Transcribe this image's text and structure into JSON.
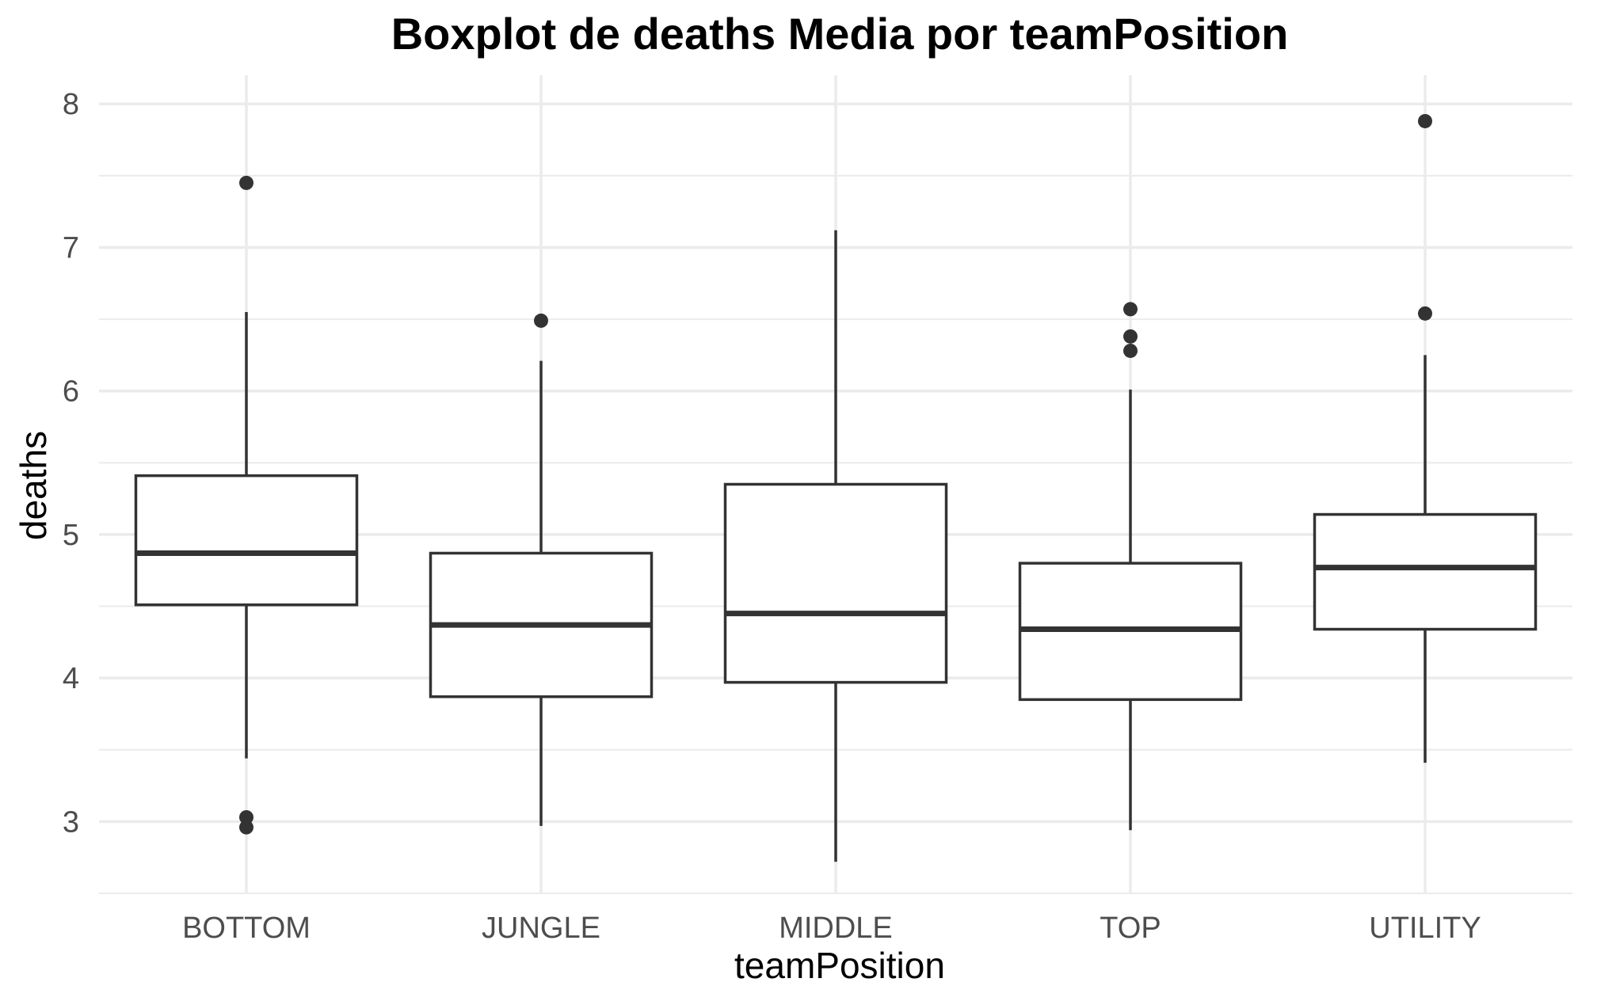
{
  "chart_data": {
    "type": "boxplot",
    "title": "Boxplot de deaths Media por teamPosition",
    "xlabel": "teamPosition",
    "ylabel": "deaths",
    "ylim": [
      2.5,
      8.2
    ],
    "y_ticks": [
      "3",
      "4",
      "5",
      "6",
      "7",
      "8"
    ],
    "grid": true,
    "categories": [
      "BOTTOM",
      "JUNGLE",
      "MIDDLE",
      "TOP",
      "UTILITY"
    ],
    "boxes": [
      {
        "category": "BOTTOM",
        "whisker_low": 3.44,
        "q1": 4.51,
        "median": 4.87,
        "q3": 5.41,
        "whisker_high": 6.55,
        "outliers": [
          7.45,
          3.03,
          2.96
        ]
      },
      {
        "category": "JUNGLE",
        "whisker_low": 2.97,
        "q1": 3.87,
        "median": 4.37,
        "q3": 4.87,
        "whisker_high": 6.21,
        "outliers": [
          6.49
        ]
      },
      {
        "category": "MIDDLE",
        "whisker_low": 2.72,
        "q1": 3.97,
        "median": 4.45,
        "q3": 5.35,
        "whisker_high": 7.12,
        "outliers": []
      },
      {
        "category": "TOP",
        "whisker_low": 2.94,
        "q1": 3.85,
        "median": 4.34,
        "q3": 4.8,
        "whisker_high": 6.01,
        "outliers": [
          6.57,
          6.38,
          6.28
        ]
      },
      {
        "category": "UTILITY",
        "whisker_low": 3.41,
        "q1": 4.34,
        "median": 4.77,
        "q3": 5.14,
        "whisker_high": 6.25,
        "outliers": [
          7.88,
          6.54
        ]
      }
    ],
    "colors": {
      "box_stroke": "#333333",
      "box_fill": "#ffffff",
      "grid": "#ebebeb",
      "point": "#333333"
    }
  }
}
